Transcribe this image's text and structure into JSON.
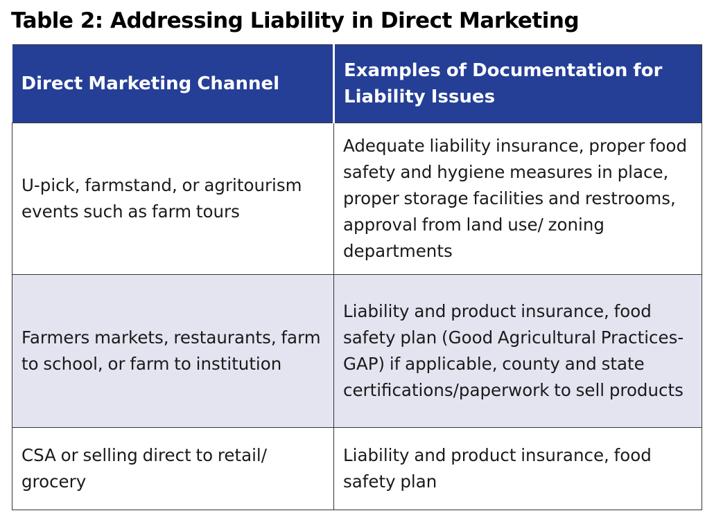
{
  "title": "Table 2: Addressing Liability in Direct Marketing",
  "colors": {
    "header_bg": "#253f97",
    "header_text": "#ffffff",
    "shaded_row_bg": "#e4e4f1",
    "border": "#333333"
  },
  "table": {
    "headers": [
      "Direct Marketing Channel",
      "Examples of Documentation for Liability Issues"
    ],
    "rows": [
      {
        "channel": "U-pick, farmstand, or agritourism events such as farm tours",
        "documentation": "Adequate liability insurance, proper food safety and hygiene measures in place, proper storage facilities and restrooms, approval from land use/ zoning departments"
      },
      {
        "channel": "Farmers markets, restaurants, farm to school, or farm to institution",
        "documentation": "Liability and product insurance, food safety plan (Good Agricultural Practices-GAP) if applicable, county and state certifications/paperwork to sell products"
      },
      {
        "channel": "CSA or selling direct to retail/ grocery",
        "documentation": "Liability and product insurance, food safety plan"
      }
    ]
  }
}
